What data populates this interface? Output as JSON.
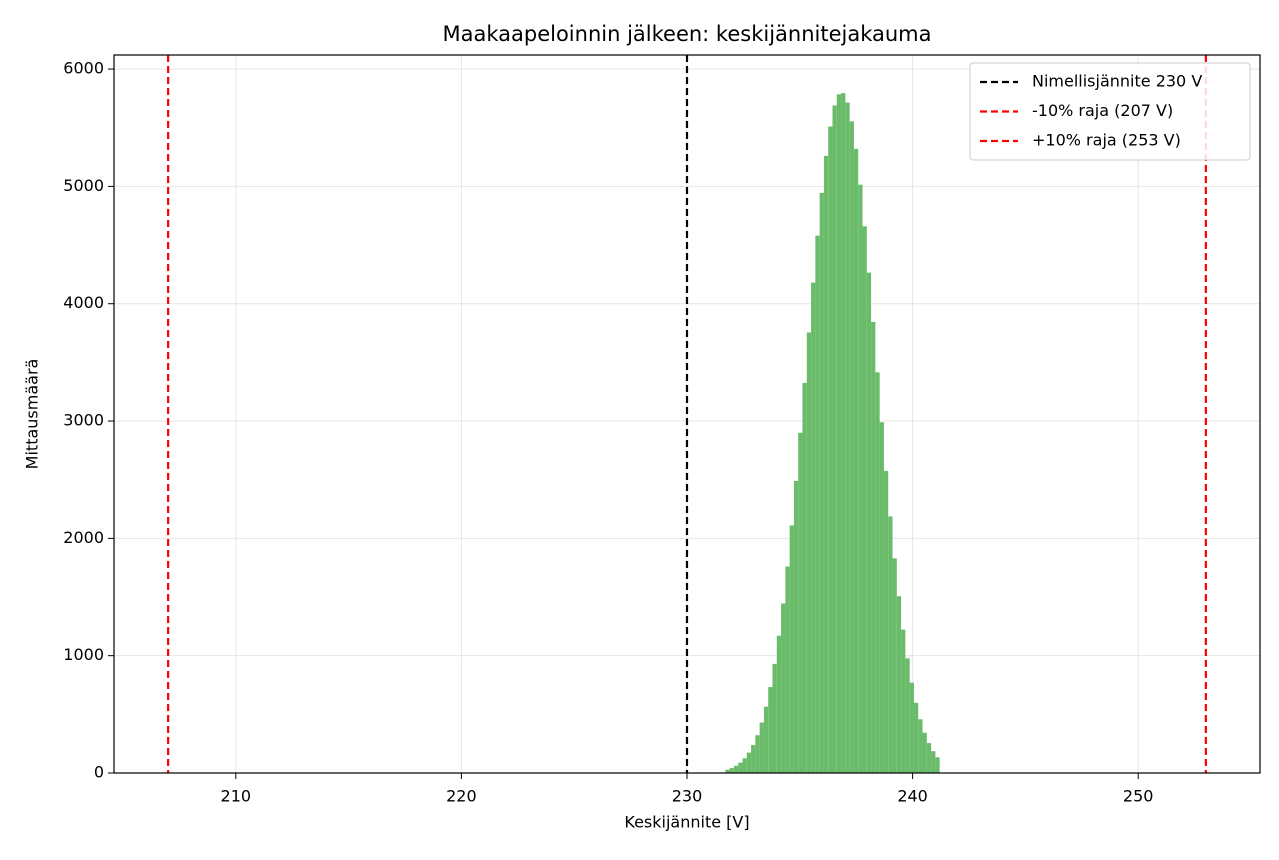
{
  "chart_data": {
    "type": "histogram",
    "title": "Maakaapeloinnin jälkeen: keskijännitejakauma",
    "x_label": "Keskijännite [V]",
    "y_label": "Mittausmäärä",
    "bins": [
      231.7,
      231.89,
      232.08,
      232.27,
      232.46,
      232.65,
      232.84,
      233.03,
      233.22,
      233.41,
      233.6,
      233.79,
      233.98,
      234.17,
      234.36,
      234.55,
      234.74,
      234.93,
      235.12,
      235.31,
      235.5,
      235.69,
      235.88,
      236.07,
      236.26,
      236.45,
      236.64,
      236.83,
      237.02,
      237.21,
      237.4,
      237.59,
      237.78,
      237.97,
      238.16,
      238.35,
      238.54,
      238.73,
      238.92,
      239.11,
      239.3,
      239.49,
      239.68,
      239.87,
      240.06,
      240.25,
      240.44,
      240.63,
      240.82,
      241.01,
      241.2
    ],
    "values": [
      28,
      42,
      61,
      88,
      125,
      174,
      239,
      322,
      430,
      565,
      732,
      930,
      1170,
      1445,
      1760,
      2110,
      2490,
      2900,
      3325,
      3755,
      4180,
      4580,
      4945,
      5260,
      5510,
      5690,
      5785,
      5795,
      5715,
      5555,
      5320,
      5015,
      4660,
      4265,
      3845,
      3415,
      2990,
      2575,
      2187,
      1830,
      1507,
      1222,
      977,
      770,
      598,
      458,
      343,
      255,
      186,
      134
    ],
    "color": "#6abb6a",
    "vlines": [
      {
        "name": "Nimellisjännite 230 V",
        "x": 230,
        "color": "#000000"
      },
      {
        "name": "-10% raja (207 V)",
        "x": 207,
        "color": "#ff0000"
      },
      {
        "name": "+10% raja (253 V)",
        "x": 253,
        "color": "#ff0000"
      }
    ],
    "xlim": [
      204.6,
      255.4
    ],
    "xticks": [
      210,
      220,
      230,
      240,
      250
    ],
    "ylim": [
      0,
      6120
    ],
    "yticks": [
      0,
      1000,
      2000,
      3000,
      4000,
      5000,
      6000
    ],
    "grid": true,
    "legend": "upper right"
  }
}
